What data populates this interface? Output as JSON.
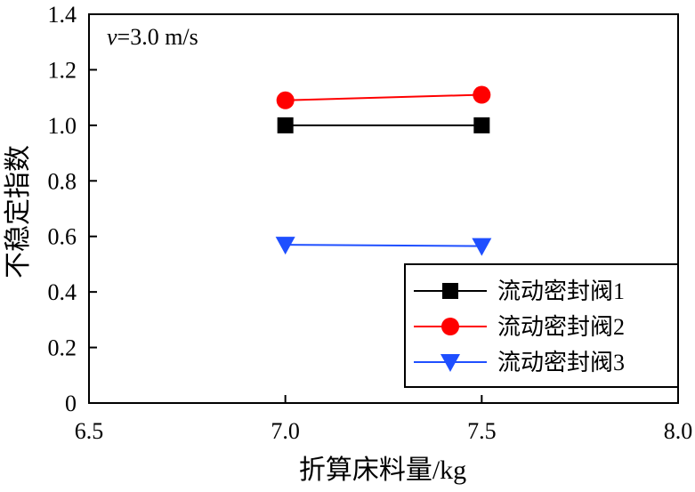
{
  "chart_data": {
    "type": "line",
    "title": "",
    "xlabel": "折算床料量/kg",
    "ylabel": "不稳定指数",
    "xlim": [
      6.5,
      8.0
    ],
    "ylim": [
      0,
      1.4
    ],
    "xticks": [
      6.5,
      7.0,
      7.5,
      8.0
    ],
    "xtick_labels": [
      "6.5",
      "7.0",
      "7.5",
      "8.0"
    ],
    "yticks": [
      0,
      0.2,
      0.4,
      0.6,
      0.8,
      1.0,
      1.2,
      1.4
    ],
    "ytick_labels": [
      "0",
      "0.2",
      "0.4",
      "0.6",
      "0.8",
      "1.0",
      "1.2",
      "1.4"
    ],
    "annotation": {
      "var": "v",
      "rest": "=3.0 m/s"
    },
    "grid": false,
    "legend_position": "bottom-right",
    "series": [
      {
        "name": "流动密封阀1",
        "color": "#000000",
        "marker": "square",
        "x": [
          7.0,
          7.5
        ],
        "y": [
          1.0,
          1.0
        ]
      },
      {
        "name": "流动密封阀2",
        "color": "#ff0000",
        "marker": "circle",
        "x": [
          7.0,
          7.5
        ],
        "y": [
          1.09,
          1.11
        ]
      },
      {
        "name": "流动密封阀3",
        "color": "#1f4fff",
        "marker": "triangle-down",
        "x": [
          7.0,
          7.5
        ],
        "y": [
          0.57,
          0.565
        ]
      }
    ]
  }
}
